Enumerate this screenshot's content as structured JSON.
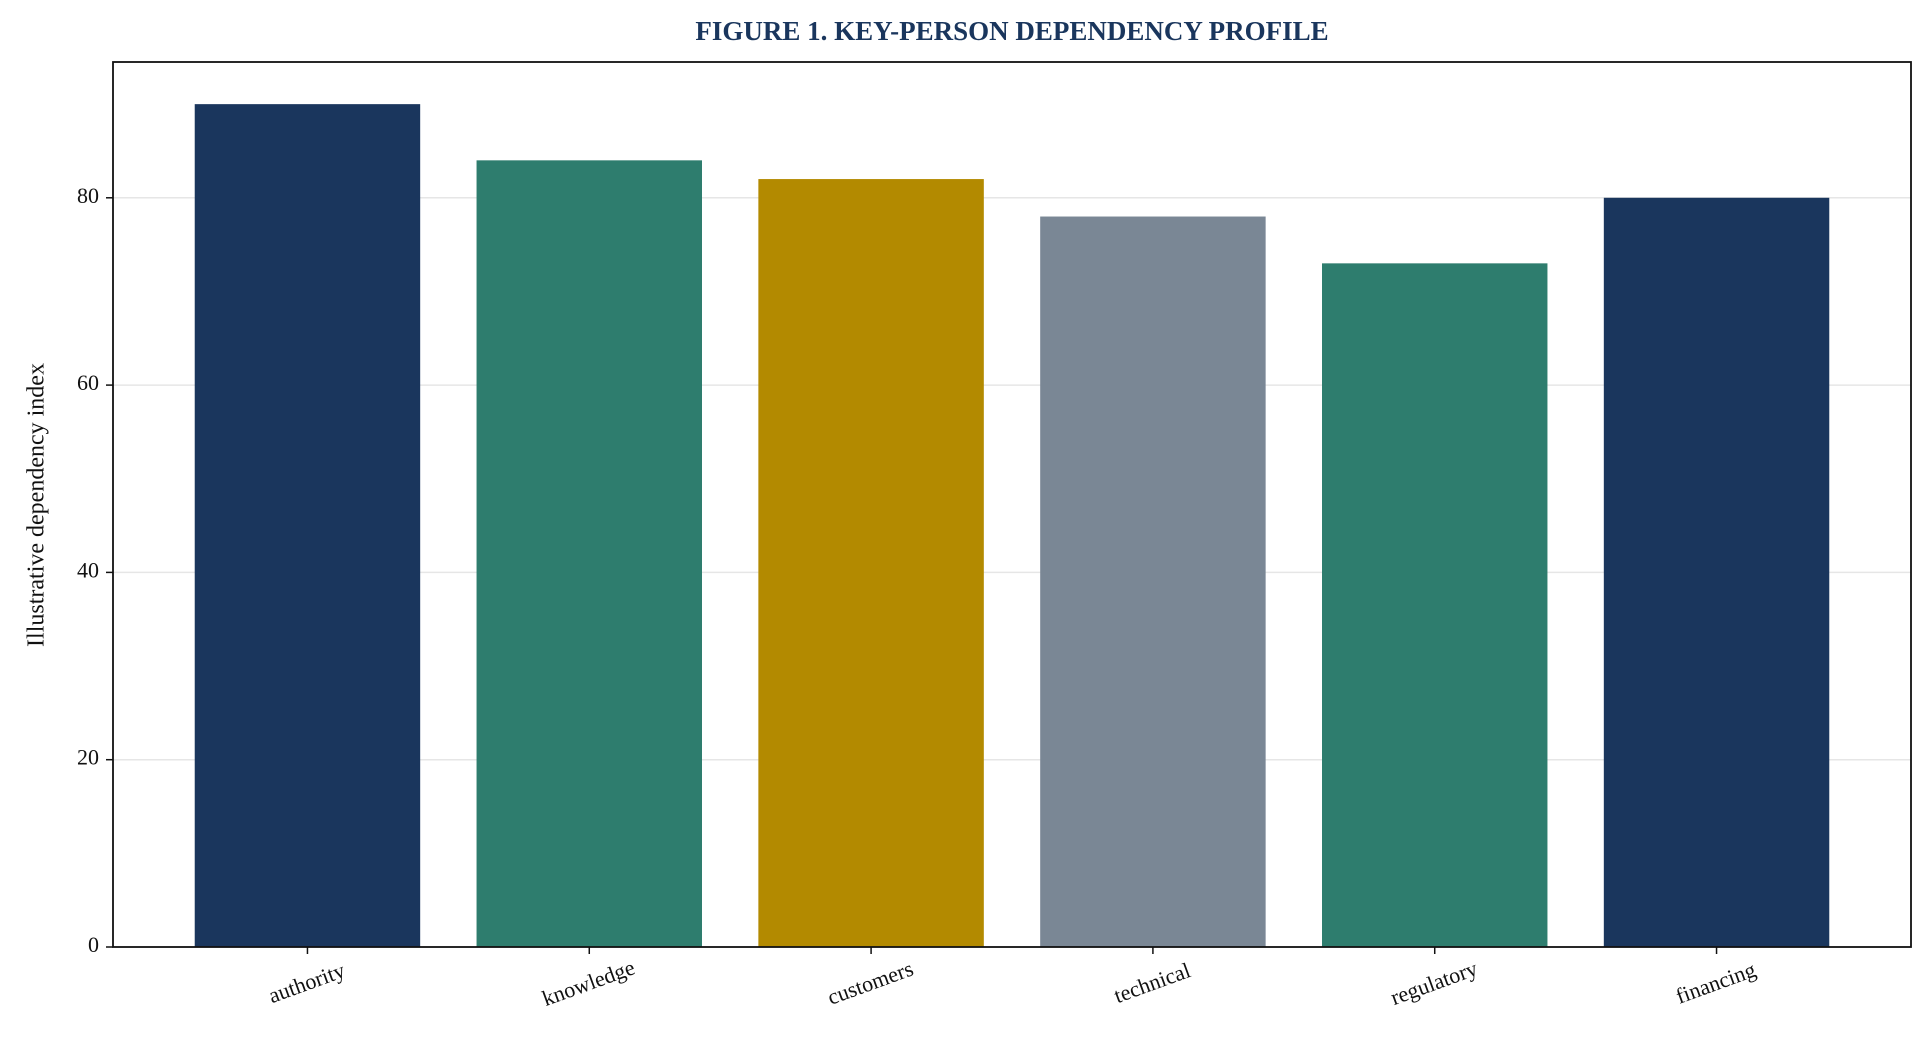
{
  "chart_data": {
    "type": "bar",
    "title": "FIGURE 1. KEY-PERSON DEPENDENCY PROFILE",
    "y_label": "Illustrative dependency index",
    "categories": [
      "authority",
      "knowledge",
      "customers",
      "technical",
      "regulatory",
      "financing"
    ],
    "values": [
      90,
      84,
      82,
      78,
      73,
      80
    ],
    "colors": [
      "#1a365d",
      "#2e7d6e",
      "#b38a00",
      "#7a8795",
      "#2e7d6e",
      "#1a365d"
    ],
    "ylim": [
      0,
      94.5
    ],
    "yticks": [
      0,
      20,
      40,
      60,
      80
    ],
    "grid": true
  }
}
